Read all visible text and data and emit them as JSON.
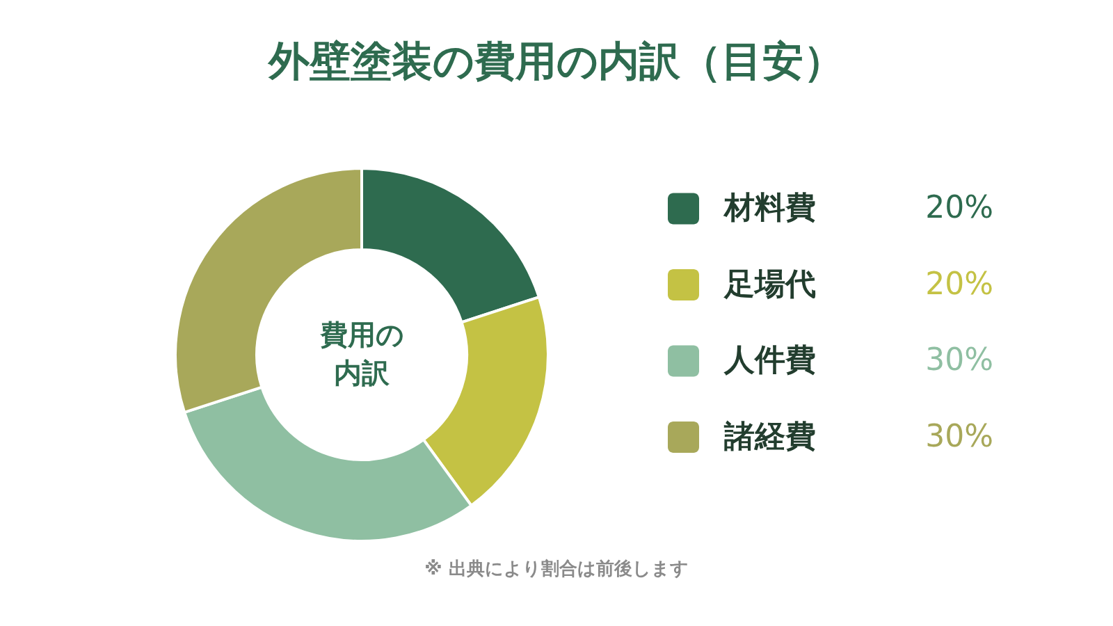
{
  "chart_data": {
    "type": "donut",
    "title": "外壁塗装の費用の内訳（目安）",
    "categories": [
      "材料費",
      "足場代",
      "人件費",
      "諸経費"
    ],
    "values": [
      20,
      20,
      30,
      30
    ],
    "colors": [
      "#2e6b4f",
      "#c4c244",
      "#8fbfa2",
      "#a8a85a"
    ],
    "value_labels": [
      "20%",
      "20%",
      "30%",
      "30%"
    ],
    "legend": "right",
    "annotations": [
      "費用の内訳",
      "※ 出典により割合は前後します"
    ]
  }
}
